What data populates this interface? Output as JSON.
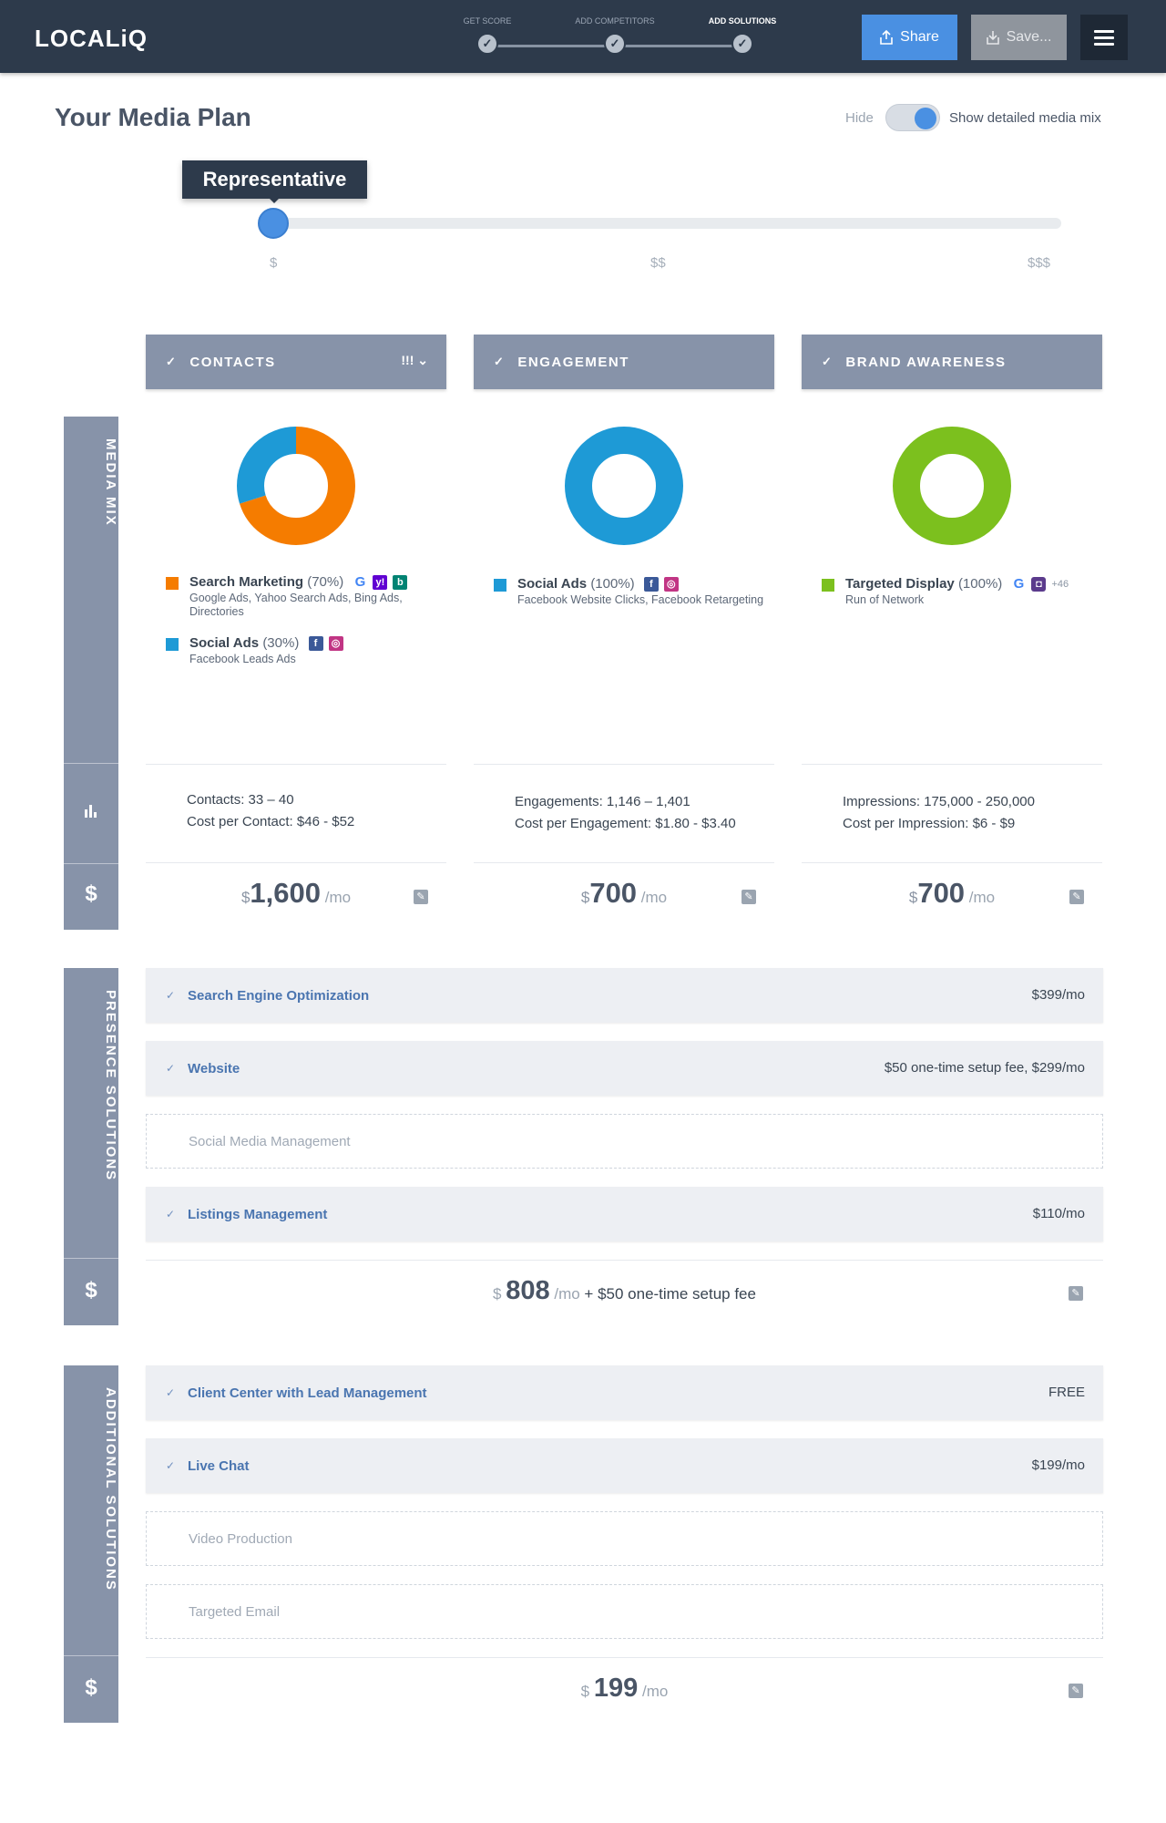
{
  "app": {
    "logo": "LOCALiQ",
    "steps": [
      {
        "label": "GET SCORE",
        "state": "done"
      },
      {
        "label": "ADD COMPETITORS",
        "state": "done"
      },
      {
        "label": "ADD SOLUTIONS",
        "state": "active"
      }
    ],
    "share_label": "Share",
    "save_label": "Save..."
  },
  "header": {
    "title": "Your Media Plan",
    "toggle_off_label": "Hide",
    "toggle_on_label": "Show detailed media mix",
    "toggle_on": true
  },
  "slider": {
    "tooltip": "Representative",
    "ticks": [
      "$",
      "$$",
      "$$$"
    ],
    "value": 0
  },
  "sections": {
    "media_mix": "MEDIA MIX",
    "presence": "PRESENCE SOLUTIONS",
    "additional": "ADDITIONAL SOLUTIONS",
    "dollar": "$"
  },
  "columns": [
    {
      "header": "CONTACTS",
      "header_badge": "!!!",
      "mix": [
        {
          "name": "Search Marketing",
          "pct": "(70%)",
          "value": 70,
          "color": "#f57c00",
          "brands": [
            "google-icon",
            "yahoo-icon",
            "bing-icon"
          ],
          "sub": "Google Ads, Yahoo Search Ads, Bing Ads, Directories"
        },
        {
          "name": "Social Ads",
          "pct": "(30%)",
          "value": 30,
          "color": "#1e9ad6",
          "brands": [
            "facebook-icon",
            "instagram-icon"
          ],
          "sub": "Facebook Leads Ads"
        }
      ],
      "stats": [
        {
          "label": "Contacts:",
          "value": "33 – 40"
        },
        {
          "label": "Cost per Contact:",
          "value": "$46 - $52"
        }
      ],
      "price_symbol": "$",
      "price": "1,600",
      "per": "/mo"
    },
    {
      "header": "ENGAGEMENT",
      "header_badge": "",
      "mix": [
        {
          "name": "Social Ads",
          "pct": "(100%)",
          "value": 100,
          "color": "#1e9ad6",
          "brands": [
            "facebook-icon",
            "instagram-icon"
          ],
          "sub": "Facebook Website Clicks, Facebook Retargeting"
        }
      ],
      "stats": [
        {
          "label": "Engagements:",
          "value": "1,146 – 1,401"
        },
        {
          "label": "Cost per Engagement:",
          "value": "$1.80 - $3.40"
        }
      ],
      "price_symbol": "$",
      "price": "700",
      "per": "/mo"
    },
    {
      "header": "BRAND AWARENESS",
      "header_badge": "",
      "mix": [
        {
          "name": "Targeted Display",
          "pct": "(100%)",
          "value": 100,
          "color": "#7cc01e",
          "brands": [
            "google-icon",
            "display-network-icon"
          ],
          "more": "+46",
          "sub": "Run of Network"
        }
      ],
      "stats": [
        {
          "label": "Impressions:",
          "value": "175,000 - 250,000"
        },
        {
          "label": "Cost per Impression:",
          "value": "$6 - $9"
        }
      ],
      "price_symbol": "$",
      "price": "700",
      "per": "/mo"
    }
  ],
  "presence": {
    "items": [
      {
        "name": "Search Engine Optimization",
        "cost": "$399/mo",
        "selected": true
      },
      {
        "name": "Website",
        "cost": "$50 one-time setup fee, $299/mo",
        "selected": true
      },
      {
        "name": "Social Media Management",
        "cost": "",
        "selected": false
      },
      {
        "name": "Listings Management",
        "cost": "$110/mo",
        "selected": true
      }
    ],
    "total_symbol": "$",
    "total": "808",
    "per": "/mo",
    "extra": "+ $50 one-time setup fee"
  },
  "additional": {
    "items": [
      {
        "name": "Client Center with Lead Management",
        "cost": "FREE",
        "selected": true
      },
      {
        "name": "Live Chat",
        "cost": "$199/mo",
        "selected": true
      },
      {
        "name": "Video Production",
        "cost": "",
        "selected": false
      },
      {
        "name": "Targeted Email",
        "cost": "",
        "selected": false
      }
    ],
    "total_symbol": "$",
    "total": "199",
    "per": "/mo"
  },
  "colors": {
    "topbar": "#2d3a4b",
    "accent": "#4a90e2",
    "section": "#8793a9",
    "orange": "#f57c00",
    "blue": "#1e9ad6",
    "green": "#7cc01e"
  }
}
